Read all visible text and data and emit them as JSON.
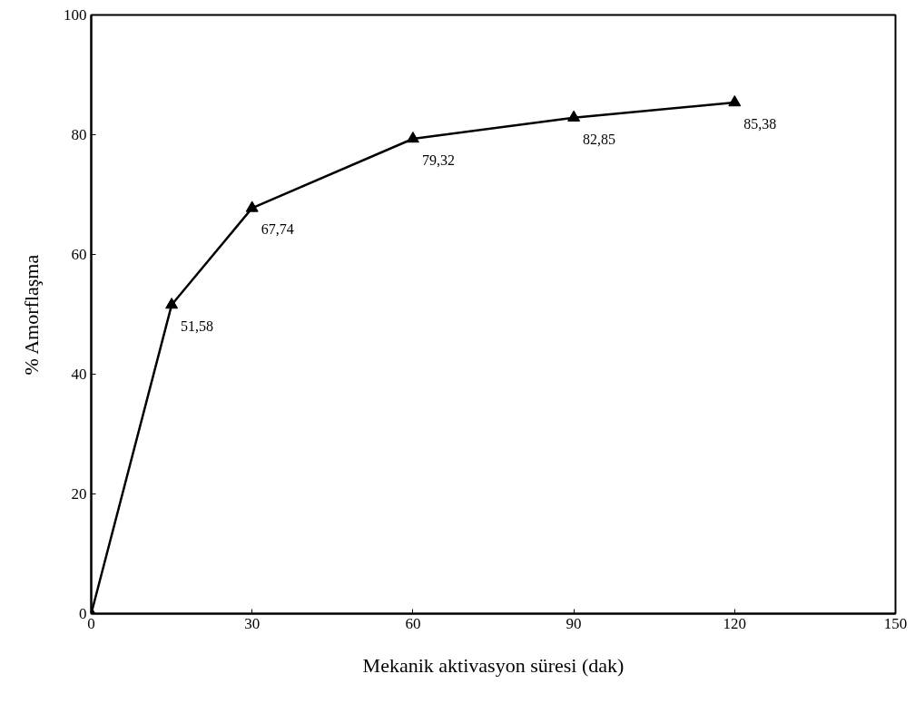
{
  "chart_data": {
    "type": "line",
    "xlabel": "Mekanik aktivasyon süresi (dak)",
    "ylabel": "% Amorflaşma",
    "x": [
      0,
      15,
      30,
      60,
      90,
      120
    ],
    "series": [
      {
        "color": "#000000",
        "values": [
          0,
          51.58,
          67.74,
          79.32,
          82.85,
          85.38
        ],
        "value_labels": [
          null,
          "51,58",
          "67,74",
          "79,32",
          "82,85",
          "85,38"
        ]
      }
    ],
    "xlim": [
      0,
      150
    ],
    "xticks": [
      0,
      30,
      60,
      90,
      120,
      150
    ],
    "ylim": [
      0,
      100
    ],
    "yticks": [
      0,
      20,
      40,
      60,
      80,
      100
    ],
    "grid": false,
    "marker": "triangle",
    "line_style": "solid"
  }
}
